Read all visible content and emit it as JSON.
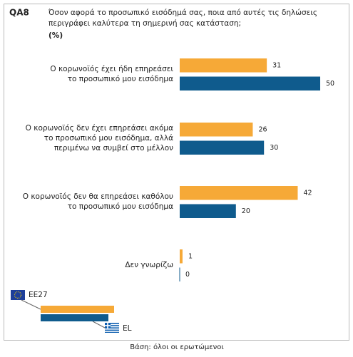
{
  "chart_data": {
    "type": "hbar-grouped",
    "question_id": "QA8",
    "title": [
      "Όσον αφορά το προσωπικό εισόδημά σας, ποια από αυτές τις δηλώσεις",
      "περιγράφει καλύτερα τη σημερινή σας κατάσταση;"
    ],
    "unit": "(%)",
    "categories": [
      [
        "Ο κορωνοϊός έχει ήδη επηρεάσει",
        "το προσωπικό μου εισόδημα"
      ],
      [
        "Ο κορωνοϊός δεν έχει επηρεάσει ακόμα",
        "το προσωπικό μου εισόδημα, αλλά",
        "περιμένω να συμβεί στο μέλλον"
      ],
      [
        "Ο κορωνοϊός δεν θα επηρεάσει καθόλου",
        "το προσωπικό μου εισόδημα"
      ],
      [
        "Δεν γνωρίζω"
      ]
    ],
    "series": [
      {
        "name": "EE27",
        "color": "#f6a937",
        "values": [
          31,
          26,
          42,
          1
        ]
      },
      {
        "name": "EL",
        "color": "#0f5b8d",
        "values": [
          50,
          30,
          20,
          0
        ]
      }
    ],
    "note": "Βάση: όλοι οι ερωτώμενοι"
  }
}
